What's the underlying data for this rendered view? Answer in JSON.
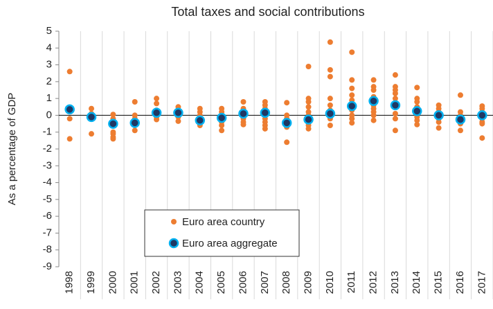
{
  "chart_data": {
    "type": "dot-strip",
    "title": "Total taxes and social contributions",
    "y_label": "As a percentage of GDP",
    "categories": [
      "1998",
      "1999",
      "2000",
      "2001",
      "2002",
      "2003",
      "2004",
      "2005",
      "2006",
      "2007",
      "2008",
      "2009",
      "2010",
      "2011",
      "2012",
      "2013",
      "2014",
      "2015",
      "2016",
      "2017"
    ],
    "series": [
      {
        "name": "Euro area country",
        "color": "#ed7d31",
        "values": [
          [
            2.6,
            -0.2,
            -1.4
          ],
          [
            0.4,
            0.1,
            -0.2,
            -1.1
          ],
          [
            0.05,
            -0.2,
            -0.4,
            -0.6,
            -1.0,
            -1.1,
            -1.3,
            -1.4
          ],
          [
            0.8,
            0.0,
            -0.2,
            -0.4,
            -0.6,
            -0.9
          ],
          [
            1.0,
            0.7,
            0.3,
            0.1,
            -0.1,
            -0.25
          ],
          [
            0.5,
            0.3,
            0.1,
            -0.1,
            -0.35
          ],
          [
            0.4,
            0.2,
            0.0,
            -0.2,
            -0.4,
            -0.6
          ],
          [
            0.4,
            0.2,
            0.0,
            -0.2,
            -0.4,
            -0.6,
            -0.9
          ],
          [
            0.8,
            0.4,
            0.2,
            0.0,
            -0.2,
            -0.4,
            -0.55
          ],
          [
            0.8,
            0.6,
            0.4,
            0.2,
            0.0,
            -0.2,
            -0.4,
            -0.6,
            -0.8
          ],
          [
            0.75,
            0.0,
            -0.2,
            -0.4,
            -0.6,
            -0.7,
            -1.6
          ],
          [
            2.9,
            1.0,
            0.8,
            0.5,
            0.2,
            0.0,
            -0.2,
            -0.4,
            -0.6,
            -0.8
          ],
          [
            4.35,
            2.7,
            2.3,
            1.0,
            0.6,
            0.3,
            0.0,
            -0.2,
            -0.6
          ],
          [
            3.75,
            2.1,
            1.6,
            1.2,
            0.9,
            0.6,
            0.3,
            0.0,
            -0.2,
            -0.45
          ],
          [
            2.1,
            1.7,
            1.5,
            1.1,
            0.8,
            0.6,
            0.4,
            0.2,
            0.0,
            -0.3
          ],
          [
            2.4,
            1.7,
            1.5,
            1.3,
            1.0,
            0.7,
            0.5,
            0.1,
            -0.2,
            -0.9
          ],
          [
            1.65,
            1.0,
            0.8,
            0.5,
            0.3,
            0.1,
            -0.1,
            -0.3,
            -0.55
          ],
          [
            0.6,
            0.4,
            0.2,
            0.0,
            -0.2,
            -0.4,
            -0.75
          ],
          [
            1.2,
            0.2,
            0.0,
            -0.2,
            -0.4,
            -0.5,
            -0.9
          ],
          [
            0.55,
            0.4,
            0.2,
            0.0,
            -0.2,
            -0.4,
            -0.5,
            -1.35
          ]
        ]
      },
      {
        "name": "Euro area aggregate",
        "color": "#1f3864",
        "edge_color": "#00b0f0",
        "values": [
          0.35,
          -0.1,
          -0.5,
          -0.45,
          0.15,
          0.15,
          -0.3,
          -0.15,
          0.1,
          0.15,
          -0.45,
          -0.25,
          0.1,
          0.55,
          0.85,
          0.6,
          0.25,
          0.0,
          -0.25,
          0.0
        ]
      }
    ],
    "ylim": [
      -9,
      5
    ],
    "yticks": [
      5,
      4,
      3,
      2,
      1,
      0,
      -1,
      -2,
      -3,
      -4,
      -5,
      -6,
      -7,
      -8,
      -9
    ]
  }
}
